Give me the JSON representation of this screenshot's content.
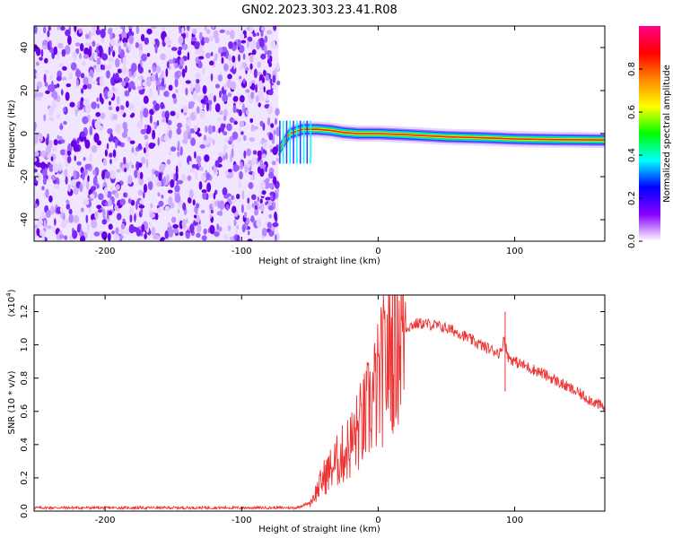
{
  "title": "GN02.2023.303.23.41.R08",
  "colors": {
    "snr_line": "#ee3333",
    "noise_purple": "#6a00e8",
    "ridge_red": "#ff1a1a"
  },
  "colorbar": {
    "label": "Normalized spectral amplitude",
    "ticks": [
      "0.0",
      "0.2",
      "0.4",
      "0.6",
      "0.8"
    ],
    "colormap": [
      "#ffffff",
      "#8800ff",
      "#0000ff",
      "#00ffff",
      "#00ff00",
      "#ffff00",
      "#ff8800",
      "#ff0000",
      "#ff0088"
    ]
  },
  "chart_data": [
    {
      "type": "heatmap",
      "xlabel": "Height of straight line (km)",
      "ylabel": "Frequency (Hz)",
      "xlim": [
        -252,
        166
      ],
      "ylim": [
        -50,
        50
      ],
      "xticks": [
        -200,
        -100,
        0,
        100
      ],
      "xtick_labels": [
        "-200",
        "-100",
        "0",
        "100"
      ],
      "yticks": [
        -40,
        -20,
        0,
        20,
        40
      ],
      "ytick_labels": [
        "-40",
        "-20",
        "0",
        "20",
        "40"
      ],
      "noise_region_x": [
        -252,
        -73
      ],
      "signal_ridge": {
        "x": [
          -73,
          -65,
          -55,
          -45,
          -35,
          -25,
          -15,
          0,
          20,
          50,
          80,
          100,
          130,
          166
        ],
        "freq": [
          -8,
          0,
          2,
          2,
          1.5,
          0.5,
          0,
          0,
          -0.5,
          -1.5,
          -2,
          -2.5,
          -2.8,
          -3
        ]
      }
    },
    {
      "type": "line",
      "xlabel": "Height of straight line (km)",
      "ylabel": "SNR (10 * v/v)",
      "multiplier": "(x10",
      "multiplier_exp": "4",
      "xlim": [
        -252,
        166
      ],
      "ylim": [
        0,
        1.3
      ],
      "xticks": [
        -200,
        -100,
        0,
        100
      ],
      "xtick_labels": [
        "-200",
        "-100",
        "0",
        "100"
      ],
      "yticks": [
        0,
        0.2,
        0.4,
        0.6,
        0.8,
        1.0,
        1.2
      ],
      "ytick_labels": [
        "0.0",
        "0.2",
        "0.4",
        "0.6",
        "0.8",
        "1.0",
        "1.2"
      ],
      "series": [
        {
          "x": [
            -252,
            -200,
            -100,
            -60,
            -50,
            -45,
            -40,
            -35,
            -30,
            -25,
            -20,
            -15,
            -10,
            -5,
            0,
            5,
            10,
            15,
            20,
            25,
            30,
            40,
            50,
            60,
            70,
            80,
            90,
            92,
            95,
            100,
            120,
            140,
            166
          ],
          "y": [
            0.02,
            0.02,
            0.02,
            0.02,
            0.05,
            0.12,
            0.2,
            0.25,
            0.3,
            0.35,
            0.4,
            0.48,
            0.55,
            0.65,
            0.75,
            0.88,
            1.0,
            1.08,
            1.1,
            1.12,
            1.13,
            1.12,
            1.1,
            1.07,
            1.02,
            0.98,
            0.95,
            1.05,
            0.93,
            0.9,
            0.83,
            0.74,
            0.62
          ]
        }
      ]
    }
  ]
}
